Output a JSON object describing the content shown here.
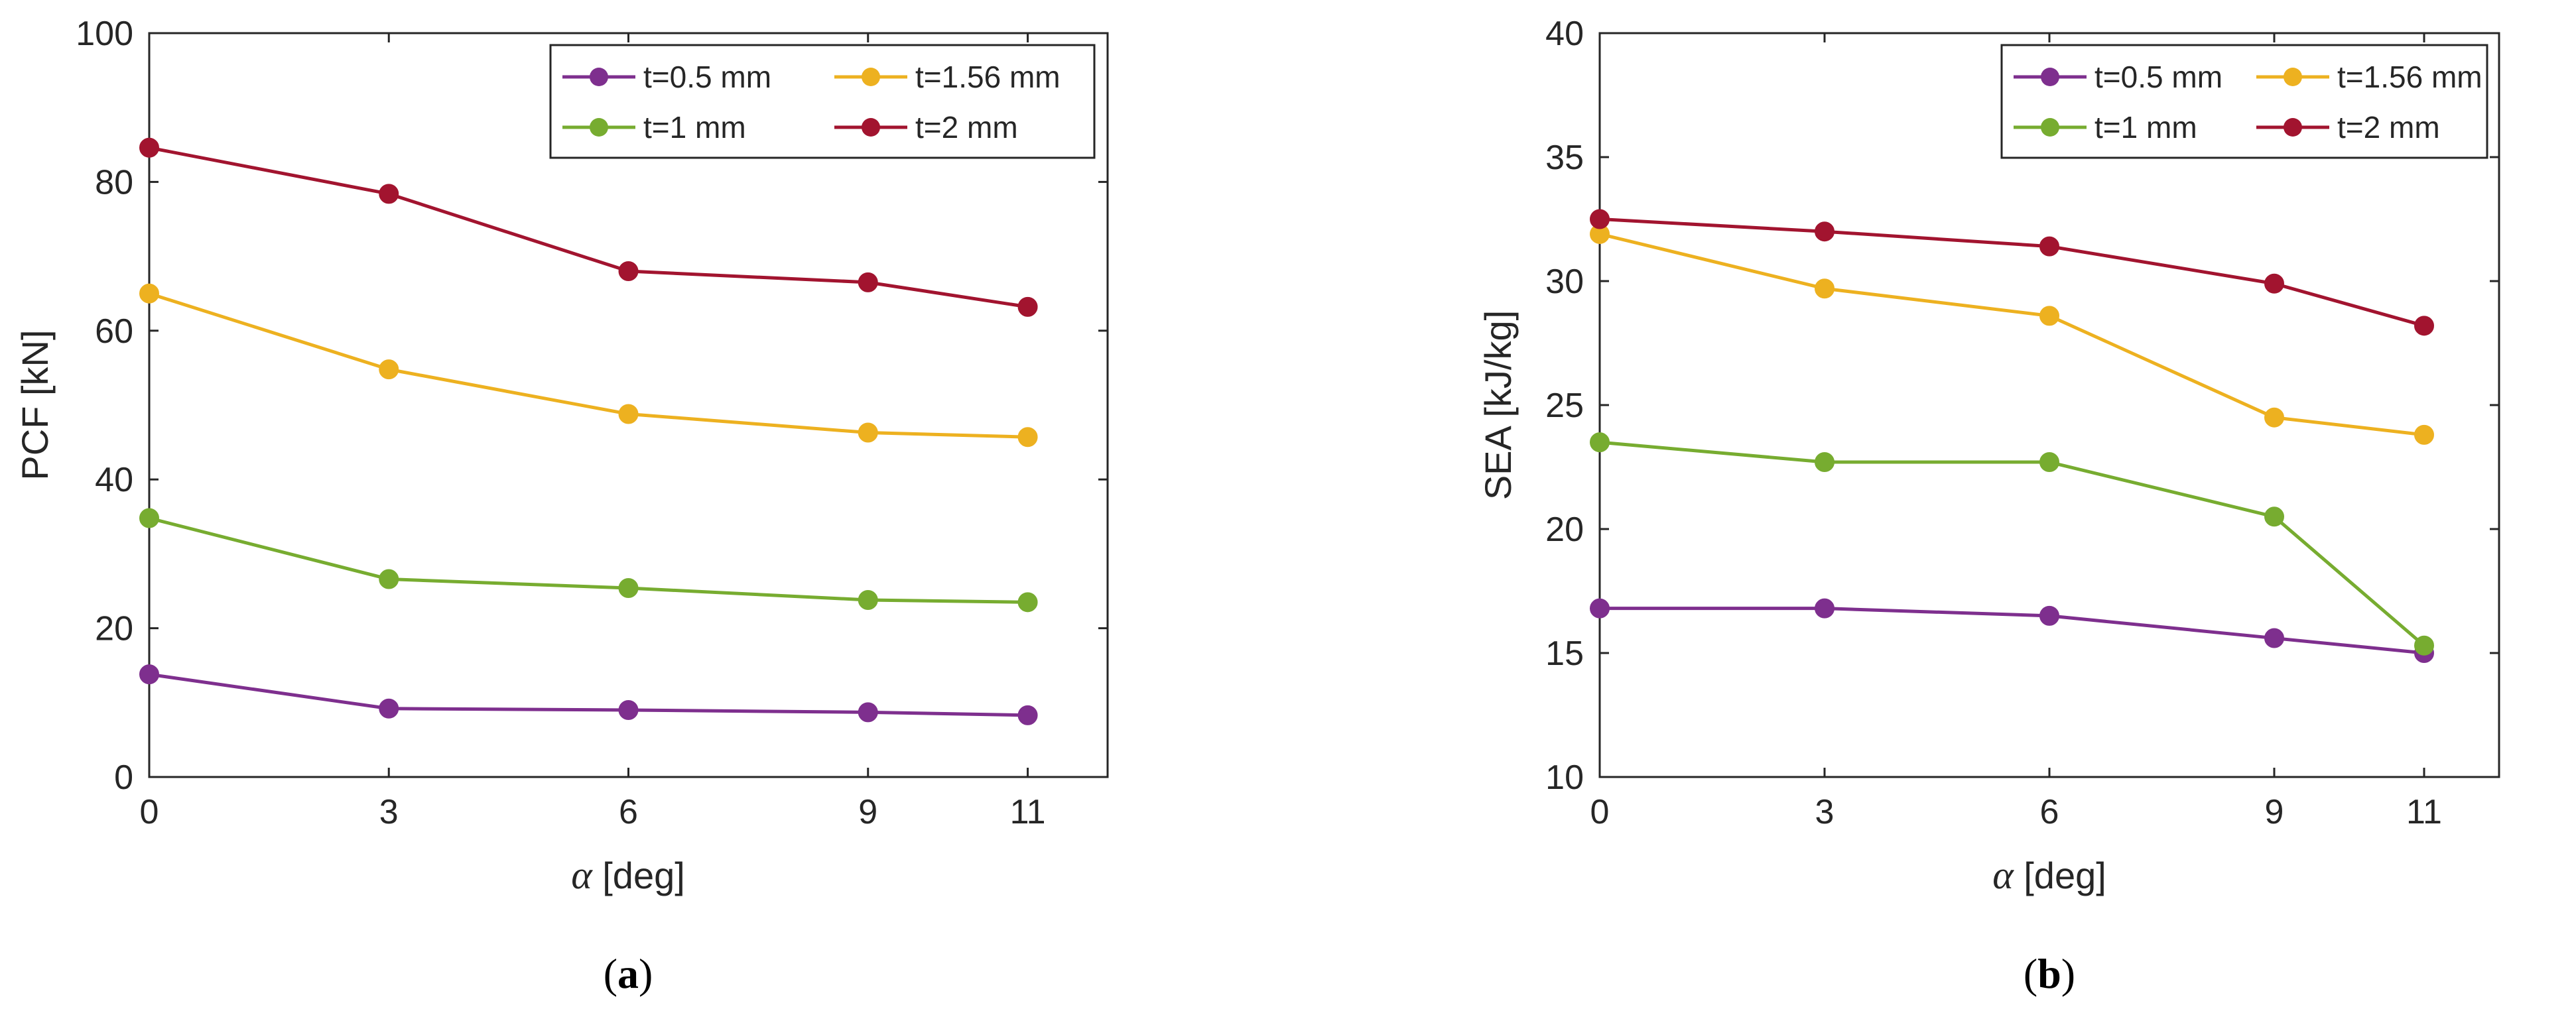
{
  "chart_data": [
    {
      "id": "a",
      "type": "line",
      "caption_letter": "a",
      "x": [
        0,
        3,
        6,
        9,
        11
      ],
      "xticks": [
        "0",
        "3",
        "6",
        "9",
        "11"
      ],
      "xlim": [
        0,
        12
      ],
      "ylim": [
        0,
        100
      ],
      "yticks": [
        "0",
        "20",
        "40",
        "60",
        "80",
        "100"
      ],
      "ytick_values": [
        0,
        20,
        40,
        60,
        80,
        100
      ],
      "xlabel_symbol": "α",
      "xlabel_text": " [deg]",
      "ylabel": "PCF [kN]",
      "series": [
        {
          "name": "t=0.5 mm",
          "color": "#7E2F8E",
          "values": [
            13.8,
            9.2,
            9.0,
            8.7,
            8.3
          ]
        },
        {
          "name": "t=1.56 mm",
          "color": "#EDB120",
          "values": [
            65.0,
            54.8,
            48.8,
            46.3,
            45.7
          ]
        },
        {
          "name": "t=1 mm",
          "color": "#77AC30",
          "values": [
            34.8,
            26.6,
            25.4,
            23.8,
            23.5
          ]
        },
        {
          "name": "t=2 mm",
          "color": "#A2142F",
          "values": [
            84.6,
            78.4,
            68.0,
            66.5,
            63.2
          ]
        }
      ]
    },
    {
      "id": "b",
      "type": "line",
      "caption_letter": "b",
      "x": [
        0,
        3,
        6,
        9,
        11
      ],
      "xticks": [
        "0",
        "3",
        "6",
        "9",
        "11"
      ],
      "xlim": [
        0,
        12
      ],
      "ylim": [
        10,
        40
      ],
      "yticks": [
        "10",
        "15",
        "20",
        "25",
        "30",
        "35",
        "40"
      ],
      "ytick_values": [
        10,
        15,
        20,
        25,
        30,
        35,
        40
      ],
      "xlabel_symbol": "α",
      "xlabel_text": " [deg]",
      "ylabel": "SEA [kJ/kg]",
      "series": [
        {
          "name": "t=0.5 mm",
          "color": "#7E2F8E",
          "values": [
            16.8,
            16.8,
            16.5,
            15.6,
            15.0
          ]
        },
        {
          "name": "t=1.56 mm",
          "color": "#EDB120",
          "values": [
            31.9,
            29.7,
            28.6,
            24.5,
            23.8
          ]
        },
        {
          "name": "t=1 mm",
          "color": "#77AC30",
          "values": [
            23.5,
            22.7,
            22.7,
            20.5,
            15.3
          ]
        },
        {
          "name": "t=2 mm",
          "color": "#A2142F",
          "values": [
            32.5,
            32.0,
            31.4,
            29.9,
            28.2
          ]
        }
      ]
    }
  ]
}
